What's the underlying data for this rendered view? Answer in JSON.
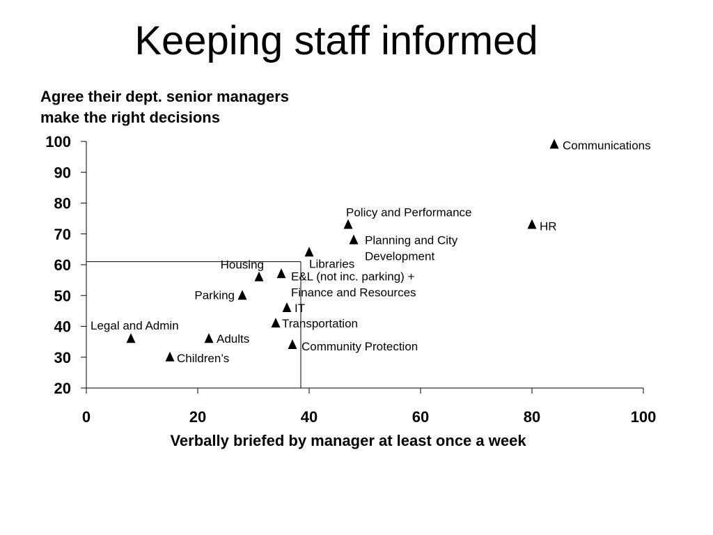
{
  "slide": {
    "title": "Keeping staff informed"
  },
  "chart_data": {
    "type": "scatter",
    "title": "",
    "ylabel_lines": [
      "Agree their dept. senior managers",
      "make the right decisions"
    ],
    "xlabel": "Verbally briefed by manager at least once a week",
    "xlim": [
      0,
      100
    ],
    "ylim": [
      20,
      100
    ],
    "xticks": [
      0,
      20,
      40,
      60,
      80,
      100
    ],
    "yticks": [
      20,
      30,
      40,
      50,
      60,
      70,
      80,
      90,
      100
    ],
    "grid": false,
    "marker": "triangle",
    "marker_color": "#000000",
    "reference_lines": {
      "x": 38.5,
      "y": 61
    },
    "points": [
      {
        "name": "Communications",
        "x": 84,
        "y": 99
      },
      {
        "name": "HR",
        "x": 80,
        "y": 73
      },
      {
        "name": "Policy and Performance",
        "x": 47,
        "y": 73
      },
      {
        "name": "Planning and City Development",
        "x": 48,
        "y": 68
      },
      {
        "name": "Libraries",
        "x": 40,
        "y": 64
      },
      {
        "name": "Housing",
        "x": 31,
        "y": 56
      },
      {
        "name": "E&L (not inc. parking) + Finance and Resources",
        "x": 35,
        "y": 57
      },
      {
        "name": "Parking",
        "x": 28,
        "y": 50
      },
      {
        "name": "IT",
        "x": 36,
        "y": 46
      },
      {
        "name": "Transportation",
        "x": 34,
        "y": 41
      },
      {
        "name": "Legal and Admin",
        "x": 8,
        "y": 36
      },
      {
        "name": "Adults",
        "x": 22,
        "y": 36
      },
      {
        "name": "Community Protection",
        "x": 37,
        "y": 34
      },
      {
        "name": "Children’s",
        "x": 15,
        "y": 30
      }
    ]
  }
}
